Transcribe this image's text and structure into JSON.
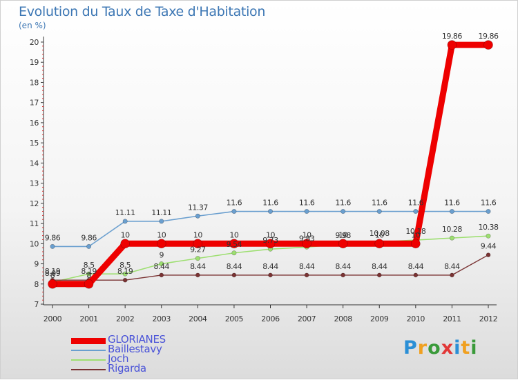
{
  "title": "Evolution du Taux de Taxe d'Habitation",
  "unit": "(en %)",
  "brand": {
    "letters": [
      {
        "char": "P",
        "color": "#2b8fd6"
      },
      {
        "char": "r",
        "color": "#f0a020"
      },
      {
        "char": "o",
        "color": "#3a9a3a"
      },
      {
        "char": "x",
        "color": "#e23838"
      },
      {
        "char": "i",
        "color": "#2b8fd6"
      },
      {
        "char": "t",
        "color": "#f0a020"
      },
      {
        "char": "i",
        "color": "#3a9a3a"
      }
    ]
  },
  "chart_data": {
    "type": "line",
    "title": "Evolution du Taux de Taxe d'Habitation",
    "ylabel": "(en %)",
    "xlabel": "",
    "x": [
      "2000",
      "2001",
      "2002",
      "2003",
      "2004",
      "2005",
      "2006",
      "2007",
      "2008",
      "2009",
      "2010",
      "2011",
      "2012"
    ],
    "ylim": [
      7,
      20
    ],
    "yticks": [
      7,
      8,
      9,
      10,
      11,
      12,
      13,
      14,
      15,
      16,
      17,
      18,
      19,
      20
    ],
    "legend_position": "bottom-left",
    "series": [
      {
        "name": "Baillestavy",
        "color": "#6a9fcf",
        "values": [
          9.86,
          9.86,
          11.11,
          11.11,
          11.37,
          11.6,
          11.6,
          11.6,
          11.6,
          11.6,
          11.6,
          11.6,
          11.6
        ],
        "labels": [
          "9.86",
          "9.86",
          "11.11",
          "11.11",
          "11.37",
          "11.6",
          "11.6",
          "11.6",
          "11.6",
          "11.6",
          "11.6",
          "11.6",
          "11.6"
        ]
      },
      {
        "name": "Joch",
        "color": "#9ddf70",
        "values": [
          8.09,
          8.5,
          8.5,
          9,
          9.27,
          9.54,
          9.73,
          9.83,
          9.98,
          10.08,
          10.18,
          10.28,
          10.38
        ],
        "labels": [
          "8.09",
          "8.5",
          "8.5",
          "9",
          "9.27",
          "9.54",
          "9.73",
          "9.83",
          "9.98",
          "10.08",
          "10.18",
          "10.28",
          "10.38"
        ]
      },
      {
        "name": "Rigarda",
        "color": "#7a3333",
        "values": [
          8.19,
          8.19,
          8.19,
          8.44,
          8.44,
          8.44,
          8.44,
          8.44,
          8.44,
          8.44,
          8.44,
          8.44,
          9.44
        ],
        "labels": [
          "8.19",
          "8.19",
          "8.19",
          "8.44",
          "8.44",
          "8.44",
          "8.44",
          "8.44",
          "8.44",
          "8.44",
          "8.44",
          "8.44",
          "9.44"
        ]
      },
      {
        "name": "GLORIANES",
        "color": "#ee0000",
        "values": [
          8,
          8,
          10,
          10,
          10,
          10,
          10,
          10,
          10,
          10,
          10,
          19.86,
          19.86
        ],
        "labels": [
          "8",
          "8",
          "10",
          "10",
          "10",
          "10",
          "10",
          "10",
          "10",
          "10",
          "10",
          "19.86",
          "19.86"
        ]
      }
    ]
  }
}
